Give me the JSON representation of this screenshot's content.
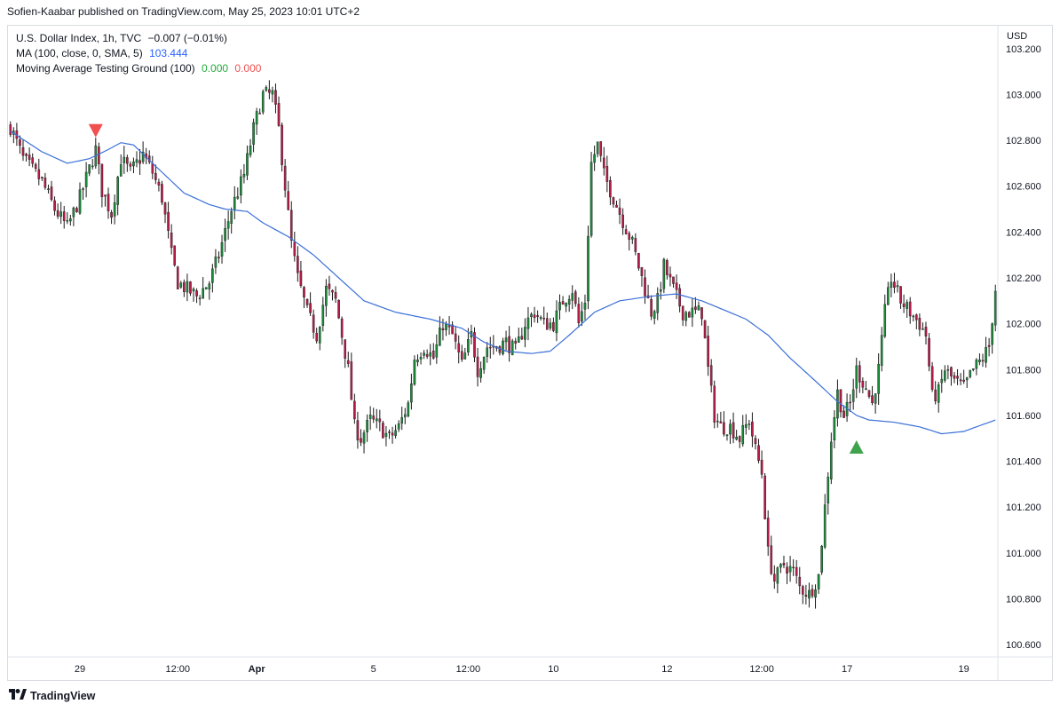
{
  "header": {
    "text": "Sofien-Kaabar published on TradingView.com, May 25, 2023 10:01 UTC+2"
  },
  "legend": {
    "symbol": {
      "name": "U.S. Dollar Index, 1h, TVC",
      "change": "−0.007 (−0.01%)"
    },
    "ma": {
      "name": "MA (100, close, 0, SMA, 5)",
      "value": "103.444"
    },
    "indicator": {
      "name": "Moving Average Testing Ground (100)",
      "value_green": "0.000",
      "value_red": "0.000"
    }
  },
  "footer": {
    "brand": "TradingView"
  },
  "colors": {
    "ma_line": "#3a6fd8",
    "up_wick": "#1a1a1a",
    "up_body": "#1b8a3a",
    "down_body": "#b71c4a",
    "sell_marker": "#f0504f",
    "buy_marker": "#3fa34d",
    "green_text": "#22ab3c",
    "red_text": "#f05050",
    "blue_text": "#2962ff"
  },
  "chart_data": {
    "type": "candlestick",
    "currency_label": "USD",
    "ylim": [
      100.55,
      103.3
    ],
    "y_ticks": [
      "103.200",
      "103.000",
      "102.800",
      "102.600",
      "102.400",
      "102.200",
      "102.000",
      "101.800",
      "101.600",
      "101.400",
      "101.200",
      "101.000",
      "100.800",
      "100.600"
    ],
    "x_ticks": [
      "29",
      "12:00",
      "Apr",
      "5",
      "12:00",
      "10",
      "12",
      "12:00",
      "17",
      "19"
    ],
    "x_tick_bars": [
      22,
      53,
      78,
      115,
      145,
      172,
      208,
      238,
      265,
      302
    ],
    "bar_count": 313,
    "close_anchors": [
      [
        0,
        102.86
      ],
      [
        4,
        102.72
      ],
      [
        10,
        102.62
      ],
      [
        14,
        102.5
      ],
      [
        18,
        102.42
      ],
      [
        22,
        102.55
      ],
      [
        27,
        102.76
      ],
      [
        29,
        102.58
      ],
      [
        32,
        102.48
      ],
      [
        35,
        102.72
      ],
      [
        38,
        102.66
      ],
      [
        42,
        102.74
      ],
      [
        45,
        102.66
      ],
      [
        48,
        102.55
      ],
      [
        51,
        102.3
      ],
      [
        53,
        102.18
      ],
      [
        56,
        102.15
      ],
      [
        59,
        102.12
      ],
      [
        63,
        102.18
      ],
      [
        66,
        102.3
      ],
      [
        70,
        102.5
      ],
      [
        74,
        102.65
      ],
      [
        77,
        102.85
      ],
      [
        80,
        103.0
      ],
      [
        83,
        103.0
      ],
      [
        85,
        102.85
      ],
      [
        87,
        102.6
      ],
      [
        89,
        102.35
      ],
      [
        91,
        102.2
      ],
      [
        94,
        102.05
      ],
      [
        97,
        101.95
      ],
      [
        100,
        102.15
      ],
      [
        103,
        102.1
      ],
      [
        105,
        101.95
      ],
      [
        107,
        101.8
      ],
      [
        109,
        101.55
      ],
      [
        111,
        101.5
      ],
      [
        114,
        101.58
      ],
      [
        117,
        101.55
      ],
      [
        120,
        101.5
      ],
      [
        123,
        101.55
      ],
      [
        126,
        101.65
      ],
      [
        128,
        101.85
      ],
      [
        131,
        101.9
      ],
      [
        134,
        101.85
      ],
      [
        137,
        102.0
      ],
      [
        140,
        101.95
      ],
      [
        143,
        101.82
      ],
      [
        146,
        101.95
      ],
      [
        148,
        101.8
      ],
      [
        151,
        101.9
      ],
      [
        154,
        101.9
      ],
      [
        157,
        101.92
      ],
      [
        160,
        101.88
      ],
      [
        163,
        102.0
      ],
      [
        166,
        102.05
      ],
      [
        169,
        102.0
      ],
      [
        172,
        102.0
      ],
      [
        175,
        102.1
      ],
      [
        178,
        102.15
      ],
      [
        180,
        102.0
      ],
      [
        182,
        102.1
      ],
      [
        184,
        102.7
      ],
      [
        186,
        102.78
      ],
      [
        188,
        102.65
      ],
      [
        191,
        102.55
      ],
      [
        194,
        102.45
      ],
      [
        197,
        102.35
      ],
      [
        200,
        102.2
      ],
      [
        203,
        102.05
      ],
      [
        205,
        102.1
      ],
      [
        207,
        102.25
      ],
      [
        210,
        102.15
      ],
      [
        213,
        102.05
      ],
      [
        216,
        102.05
      ],
      [
        219,
        102.05
      ],
      [
        221,
        101.8
      ],
      [
        223,
        101.6
      ],
      [
        225,
        101.55
      ],
      [
        228,
        101.55
      ],
      [
        231,
        101.5
      ],
      [
        234,
        101.58
      ],
      [
        236,
        101.45
      ],
      [
        238,
        101.35
      ],
      [
        240,
        101.0
      ],
      [
        242,
        100.88
      ],
      [
        245,
        100.95
      ],
      [
        248,
        100.92
      ],
      [
        250,
        100.85
      ],
      [
        253,
        100.82
      ],
      [
        256,
        100.9
      ],
      [
        258,
        101.2
      ],
      [
        260,
        101.5
      ],
      [
        262,
        101.7
      ],
      [
        264,
        101.6
      ],
      [
        266,
        101.65
      ],
      [
        268,
        101.8
      ],
      [
        271,
        101.72
      ],
      [
        273,
        101.65
      ],
      [
        275,
        101.8
      ],
      [
        277,
        102.05
      ],
      [
        279,
        102.2
      ],
      [
        282,
        102.1
      ],
      [
        285,
        102.05
      ],
      [
        288,
        102.0
      ],
      [
        290,
        101.95
      ],
      [
        292,
        101.68
      ],
      [
        294,
        101.7
      ],
      [
        296,
        101.8
      ],
      [
        299,
        101.75
      ],
      [
        302,
        101.72
      ],
      [
        305,
        101.8
      ],
      [
        308,
        101.85
      ],
      [
        310,
        101.9
      ],
      [
        312,
        102.15
      ]
    ],
    "ma_series": {
      "name": "MA (100, close, 0, SMA, 5)",
      "anchors": [
        [
          0,
          102.84
        ],
        [
          10,
          102.75
        ],
        [
          18,
          102.7
        ],
        [
          25,
          102.72
        ],
        [
          31,
          102.76
        ],
        [
          35,
          102.79
        ],
        [
          39,
          102.78
        ],
        [
          45,
          102.7
        ],
        [
          55,
          102.57
        ],
        [
          63,
          102.52
        ],
        [
          68,
          102.5
        ],
        [
          75,
          102.49
        ],
        [
          80,
          102.44
        ],
        [
          88,
          102.38
        ],
        [
          96,
          102.3
        ],
        [
          104,
          102.2
        ],
        [
          112,
          102.1
        ],
        [
          122,
          102.05
        ],
        [
          133,
          102.02
        ],
        [
          143,
          101.98
        ],
        [
          150,
          101.92
        ],
        [
          157,
          101.88
        ],
        [
          165,
          101.87
        ],
        [
          171,
          101.88
        ],
        [
          177,
          101.95
        ],
        [
          185,
          102.05
        ],
        [
          193,
          102.1
        ],
        [
          203,
          102.12
        ],
        [
          211,
          102.13
        ],
        [
          219,
          102.1
        ],
        [
          226,
          102.06
        ],
        [
          233,
          102.02
        ],
        [
          240,
          101.95
        ],
        [
          247,
          101.85
        ],
        [
          255,
          101.75
        ],
        [
          262,
          101.66
        ],
        [
          268,
          101.6
        ],
        [
          272,
          101.58
        ],
        [
          280,
          101.57
        ],
        [
          288,
          101.55
        ],
        [
          295,
          101.52
        ],
        [
          302,
          101.53
        ],
        [
          308,
          101.56
        ],
        [
          312,
          101.58
        ]
      ]
    },
    "signals": [
      {
        "type": "sell",
        "bar": 27,
        "price": 102.84
      },
      {
        "type": "buy",
        "bar": 268,
        "price": 101.46
      }
    ]
  }
}
